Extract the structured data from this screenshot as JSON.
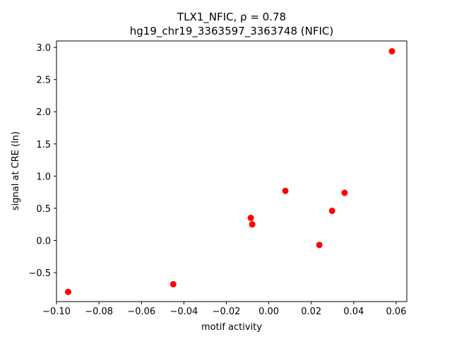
{
  "chart_data": {
    "type": "scatter",
    "title_line1": "TLX1_NFIC, ρ = 0.78",
    "title_line2": "hg19_chr19_3363597_3363748 (NFIC)",
    "xlabel": "motif activity",
    "ylabel": "signal at CRE (ln)",
    "xlim": [
      -0.1,
      0.065
    ],
    "ylim": [
      -0.95,
      3.1
    ],
    "xticks": [
      -0.1,
      -0.08,
      -0.06,
      -0.04,
      -0.02,
      0.0,
      0.02,
      0.04,
      0.06
    ],
    "xtick_labels": [
      "−0.10",
      "−0.08",
      "−0.06",
      "−0.04",
      "−0.02",
      "0.00",
      "0.02",
      "0.04",
      "0.06"
    ],
    "yticks": [
      -0.5,
      0.0,
      0.5,
      1.0,
      1.5,
      2.0,
      2.5,
      3.0
    ],
    "ytick_labels": [
      "−0.5",
      "0.0",
      "0.5",
      "1.0",
      "1.5",
      "2.0",
      "2.5",
      "3.0"
    ],
    "grid": false,
    "marker_color": "#ff0000",
    "points": [
      {
        "x": -0.0945,
        "y": -0.8
      },
      {
        "x": -0.045,
        "y": -0.68
      },
      {
        "x": -0.0085,
        "y": 0.35
      },
      {
        "x": -0.0078,
        "y": 0.25
      },
      {
        "x": 0.0078,
        "y": 0.77
      },
      {
        "x": 0.0238,
        "y": -0.07
      },
      {
        "x": 0.0298,
        "y": 0.46
      },
      {
        "x": 0.0357,
        "y": 0.74
      },
      {
        "x": 0.058,
        "y": 2.94
      }
    ]
  }
}
